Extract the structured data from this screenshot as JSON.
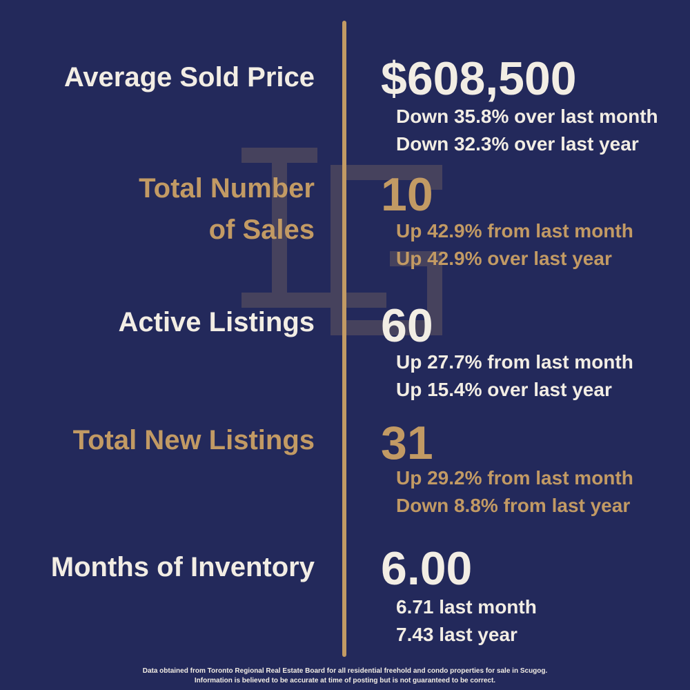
{
  "colors": {
    "background": "#23295b",
    "gold": "#c29a64",
    "cream": "#f2ede4"
  },
  "stats": [
    {
      "label_lines": [
        "Average Sold Price"
      ],
      "value": "$608,500",
      "details": [
        "Down 35.8% over last month",
        "Down 32.3% over last year"
      ]
    },
    {
      "label_lines": [
        "Total Number",
        "of Sales"
      ],
      "value": "10",
      "details": [
        "Up 42.9% from last month",
        "Up 42.9% over last year"
      ]
    },
    {
      "label_lines": [
        "Active Listings"
      ],
      "value": "60",
      "details": [
        "Up 27.7% from last month",
        "Up 15.4% over last year"
      ]
    },
    {
      "label_lines": [
        "Total New Listings"
      ],
      "value": "31",
      "details": [
        "Up 29.2% from last month",
        "Down 8.8% from last year"
      ]
    },
    {
      "label_lines": [
        "Months of Inventory"
      ],
      "value": "6.00",
      "details": [
        "6.71 last month",
        "7.43 last year"
      ]
    }
  ],
  "footer": {
    "line1": "Data obtained from Toronto Regional Real Estate Board for all residential freehold and condo properties for sale in Scugog.",
    "line2": "Information is believed to be accurate at time of posting but is not guaranteed to be correct."
  }
}
